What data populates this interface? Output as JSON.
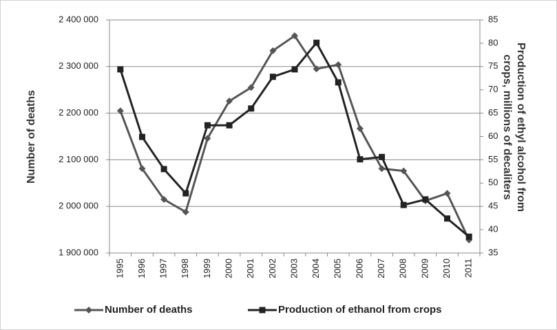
{
  "chart_data": {
    "type": "line",
    "y_label": "Number of deaths",
    "y2_label": [
      "Production of ethyl alcohol from",
      "crops, millions of decaliters"
    ],
    "categories": [
      "1995",
      "1996",
      "1997",
      "1998",
      "1999",
      "2000",
      "2001",
      "2002",
      "2003",
      "2004",
      "2005",
      "2006",
      "2007",
      "2008",
      "2009",
      "2010",
      "2011"
    ],
    "series": [
      {
        "name": "Number of deaths",
        "color": "#555555",
        "marker": "diamond",
        "axis": "y",
        "values": [
          2205000,
          2081000,
          2015000,
          1988000,
          2146000,
          2226000,
          2255000,
          2334000,
          2366000,
          2295000,
          2304000,
          2167000,
          2081000,
          2076000,
          2012000,
          2028000,
          1928000
        ]
      },
      {
        "name": "Production of ethanol from crops",
        "color": "#222222",
        "marker": "square",
        "axis": "y2",
        "values": [
          74.4,
          59.9,
          53.0,
          47.8,
          62.4,
          62.4,
          66.0,
          72.8,
          74.4,
          80.1,
          71.6,
          55.1,
          55.6,
          45.3,
          46.5,
          42.4,
          38.5
        ]
      }
    ],
    "ylim": [
      1900000,
      2400000
    ],
    "yticks": [
      {
        "value": 1900000,
        "label": "1 900 000"
      },
      {
        "value": 2000000,
        "label": "2 000 000"
      },
      {
        "value": 2100000,
        "label": "2 100 000"
      },
      {
        "value": 2200000,
        "label": "2 200 000"
      },
      {
        "value": 2300000,
        "label": "2 300 000"
      },
      {
        "value": 2400000,
        "label": "2 400 000"
      }
    ],
    "y2lim": [
      35,
      85
    ],
    "y2ticks": [
      35,
      40,
      45,
      50,
      55,
      60,
      65,
      70,
      75,
      80,
      85
    ],
    "grid": true,
    "legend": "bottom"
  }
}
